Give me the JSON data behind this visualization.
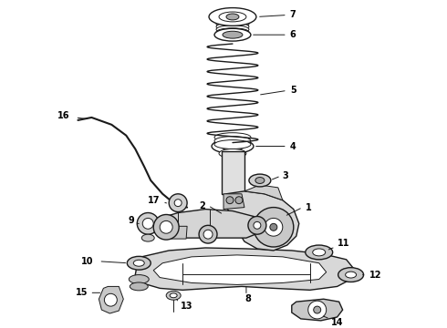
{
  "background_color": "#ffffff",
  "line_color": "#1a1a1a",
  "label_color": "#000000",
  "figsize": [
    4.9,
    3.6
  ],
  "dpi": 100,
  "title": ""
}
